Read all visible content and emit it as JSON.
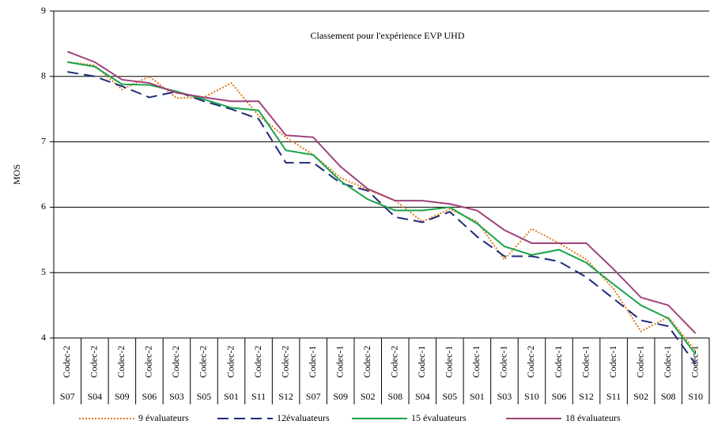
{
  "chart_data": {
    "type": "line",
    "annotation": "Classement pour l'expérience EVP UHD",
    "y_label": "MOS",
    "categories": [
      "S07",
      "S04",
      "S09",
      "S06",
      "S03",
      "S05",
      "S01",
      "S11",
      "S12",
      "S07",
      "S09",
      "S02",
      "S08",
      "S04",
      "S05",
      "S01",
      "S03",
      "S10",
      "S06",
      "S12",
      "S11",
      "S02",
      "S08",
      "S10"
    ],
    "codecs": [
      "Codec-2",
      "Codec-2",
      "Codec-2",
      "Codec-2",
      "Codec-2",
      "Codec-2",
      "Codec-2",
      "Codec-2",
      "Codec-2",
      "Codec-1",
      "Codec-1",
      "Codec-2",
      "Codec-2",
      "Codec-1",
      "Codec-1",
      "Codec-1",
      "Codec-1",
      "Codec-2",
      "Codec-1",
      "Codec-1",
      "Codec-1",
      "Codec-1",
      "Codec-1",
      "Codec-1"
    ],
    "ylim": [
      4,
      9
    ],
    "yticks": [
      4,
      5,
      6,
      7,
      8,
      9
    ],
    "grid": true,
    "series": [
      {
        "name": "9 évaluateurs",
        "color": "#e07b20",
        "dash": "dotted",
        "values": [
          8.22,
          8.17,
          7.8,
          8.0,
          7.67,
          7.68,
          7.9,
          7.4,
          7.07,
          6.8,
          6.45,
          6.27,
          6.1,
          5.78,
          5.97,
          5.78,
          5.2,
          5.67,
          5.45,
          5.2,
          4.75,
          4.1,
          4.32,
          3.8
        ]
      },
      {
        "name": "12évaluateurs",
        "color": "#1f2a7a",
        "dash": "dashed",
        "values": [
          8.07,
          8.0,
          7.85,
          7.68,
          7.77,
          7.62,
          7.5,
          7.35,
          6.68,
          6.68,
          6.37,
          6.25,
          5.85,
          5.77,
          5.93,
          5.55,
          5.25,
          5.25,
          5.17,
          4.93,
          4.6,
          4.27,
          4.18,
          3.6
        ]
      },
      {
        "name": "15 évaluateurs",
        "color": "#1aa34a",
        "dash": "solid",
        "values": [
          8.22,
          8.15,
          7.88,
          7.87,
          7.77,
          7.65,
          7.52,
          7.48,
          6.87,
          6.8,
          6.4,
          6.12,
          5.95,
          5.95,
          6.0,
          5.75,
          5.4,
          5.27,
          5.35,
          5.15,
          4.82,
          4.5,
          4.3,
          3.75
        ]
      },
      {
        "name": "18 évaluateurs",
        "color": "#a0427a",
        "dash": "solid",
        "values": [
          8.38,
          8.22,
          7.95,
          7.9,
          7.75,
          7.68,
          7.62,
          7.62,
          7.1,
          7.07,
          6.62,
          6.28,
          6.1,
          6.1,
          6.05,
          5.95,
          5.65,
          5.45,
          5.45,
          5.45,
          5.05,
          4.62,
          4.5,
          4.07
        ]
      }
    ]
  }
}
